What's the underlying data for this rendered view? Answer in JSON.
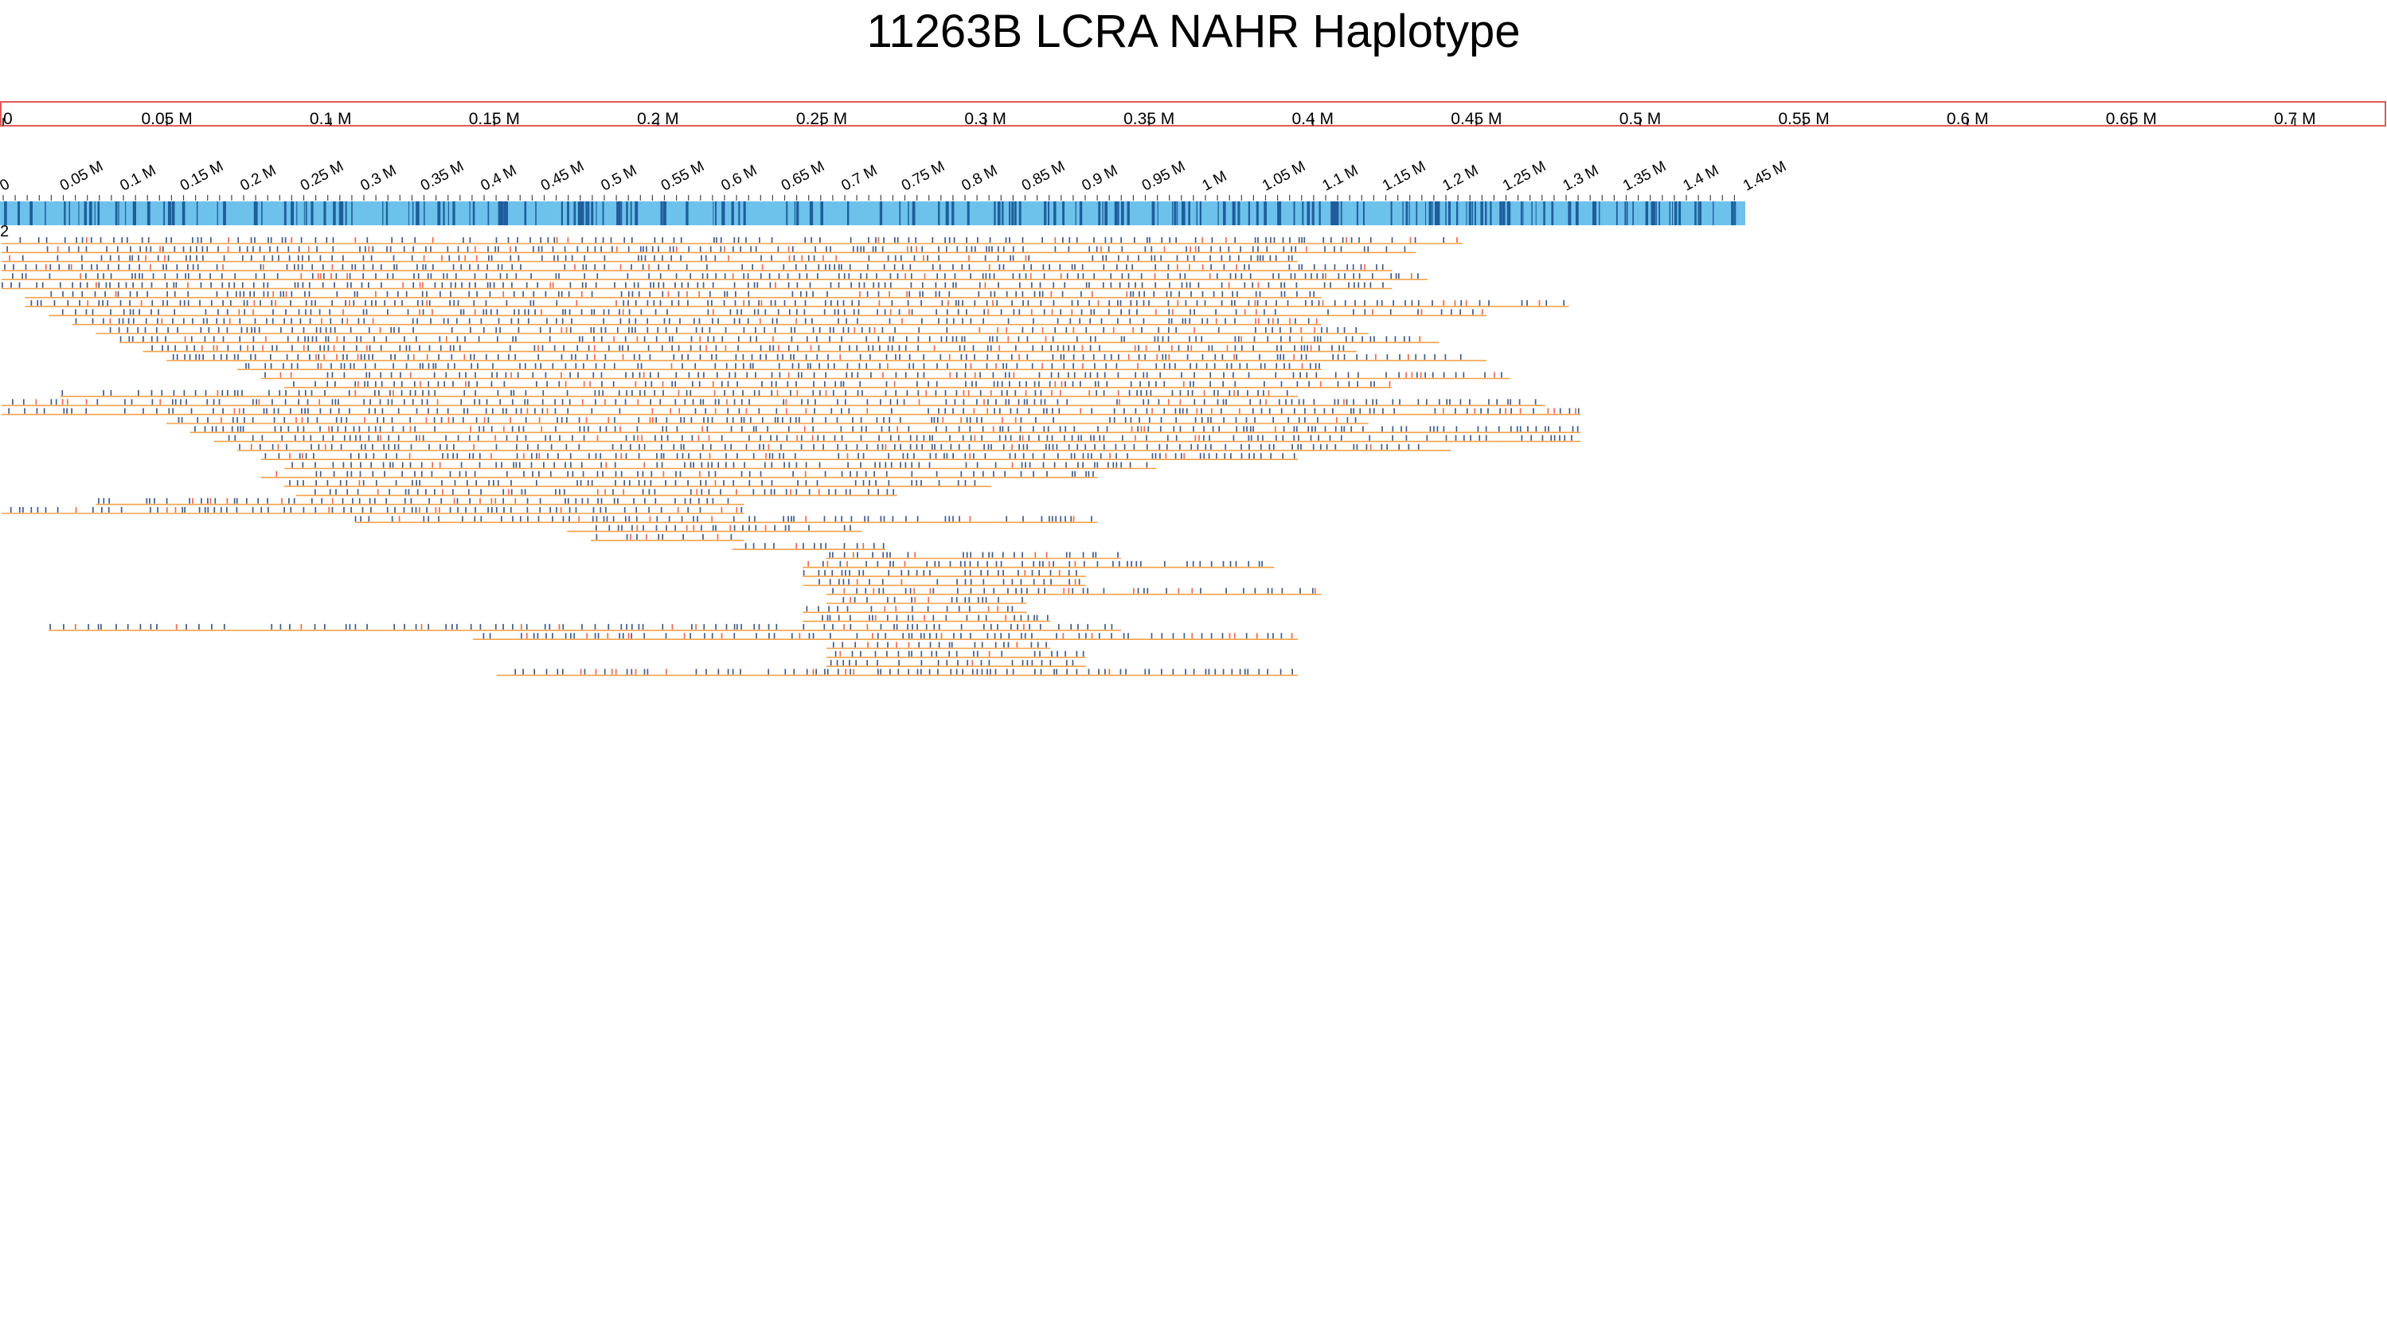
{
  "title": "11263B LCRA NAHR Haplotype",
  "colors": {
    "scale_border": "#e05a5a",
    "reference_bar": "#6cc2ea",
    "reference_feature": "#1f5d9c",
    "read_line": "#f2a24a",
    "match_tick": "#3e5c8e",
    "mismatch_tick": "#ee6a4c"
  },
  "top_axis": {
    "ticks": [
      "0",
      "0.05 M",
      "0.1 M",
      "0.15 M",
      "0.2 M",
      "0.25 M",
      "0.3 M",
      "0.35 M",
      "0.4 M",
      "0.45 M",
      "0.5 M",
      "0.55 M",
      "0.6 M",
      "0.65 M",
      "0.7 M",
      "0.75 M",
      "0.8 M",
      "0.85 M",
      "0.9 M",
      "0.95 M",
      "1 M",
      "1.05 M",
      "1.1 M",
      "1.15 M",
      "1.2 M",
      "1.25 M",
      "1.3 M",
      "1.35 M",
      "1.4 M",
      "1.45 M"
    ]
  },
  "reference_axis": {
    "ticks": [
      "0",
      "0.05 M",
      "0.1 M",
      "0.15 M",
      "0.2 M",
      "0.25 M",
      "0.3 M",
      "0.35 M",
      "0.4 M",
      "0.45 M",
      "0.5 M",
      "0.55 M",
      "0.6 M",
      "0.65 M",
      "0.7 M",
      "0.75 M",
      "0.8 M",
      "0.85 M",
      "0.9 M",
      "0.95 M",
      "1 M",
      "1.05 M",
      "1.1 M",
      "1.15 M",
      "1.2 M",
      "1.25 M",
      "1.3 M",
      "1.35 M",
      "1.4 M",
      "1.45 M"
    ]
  },
  "track_label": "2",
  "reads": [
    [
      0.0,
      0.73,
      0.85,
      0.98,
      1.24
    ],
    [
      0.0,
      0.72,
      0.86,
      0.99,
      1.2
    ],
    [
      0.0,
      0.74,
      0.84,
      0.97,
      1.1
    ],
    [
      0.0,
      0.7,
      0.86,
      1.0,
      1.18
    ],
    [
      0.0,
      0.73,
      0.85,
      0.96,
      1.21
    ],
    [
      0.0,
      0.75,
      0.86,
      0.99,
      1.18
    ],
    [
      0.02,
      0.72,
      0.86,
      0.98,
      1.12
    ],
    [
      0.02,
      0.73,
      0.84,
      1.0,
      1.33
    ],
    [
      0.04,
      0.71,
      0.86,
      0.99,
      1.26
    ],
    [
      0.06,
      0.69,
      0.84,
      0.98,
      1.12
    ],
    [
      0.08,
      0.73,
      0.86,
      0.96,
      1.16
    ],
    [
      0.1,
      0.73,
      0.84,
      0.97,
      1.22
    ],
    [
      0.12,
      0.74,
      0.86,
      0.98,
      1.15
    ],
    [
      0.14,
      0.74,
      0.84,
      0.99,
      1.26
    ],
    [
      0.2,
      0.72,
      0.85,
      0.97,
      1.12
    ],
    [
      0.22,
      0.73,
      0.86,
      0.98,
      1.28
    ],
    [
      0.24,
      0.74,
      0.84,
      0.98,
      1.18
    ],
    [
      0.05,
      0.72,
      0.86,
      0.99,
      1.1
    ],
    [
      0.0,
      0.74,
      0.84,
      0.98,
      1.31
    ],
    [
      0.0,
      0.7,
      0.86,
      0.99,
      1.34
    ],
    [
      0.14,
      0.73,
      0.86,
      0.98,
      1.16
    ],
    [
      0.16,
      0.74,
      0.84,
      0.99,
      1.34
    ],
    [
      0.18,
      0.73,
      0.85,
      0.97,
      1.34
    ],
    [
      0.2,
      0.74,
      0.86,
      0.98,
      1.23
    ],
    [
      0.22,
      0.73,
      0.84,
      0.99,
      1.1
    ],
    [
      0.24,
      0.74,
      0.86,
      0.97,
      0.98
    ],
    [
      0.22,
      0.74,
      0.86,
      0.98,
      0.93
    ],
    [
      0.24,
      0.73,
      0.84,
      0.99,
      0.84
    ],
    [
      0.25,
      0.75,
      0.85,
      0.98,
      0.76
    ],
    [
      0.08,
      0.73,
      0.86,
      0.99,
      0.63
    ],
    [
      0.0,
      0.74,
      0.84,
      0.97,
      0.63
    ],
    [
      0.3,
      0.73,
      0.86,
      0.99,
      0.93
    ],
    [
      0.48,
      0.74,
      0.84,
      0.98,
      0.73
    ],
    [
      0.5,
      0.73,
      0.86,
      0.99,
      0.63
    ],
    [
      0.62,
      0.75,
      0.84,
      0.98,
      0.75
    ],
    [
      0.7,
      0.73,
      0.85,
      0.99,
      0.95
    ],
    [
      0.68,
      0.74,
      0.86,
      0.97,
      1.08
    ],
    [
      0.68,
      0.73,
      0.84,
      0.99,
      0.92
    ],
    [
      0.68,
      0.74,
      0.86,
      0.98,
      0.92
    ],
    [
      0.7,
      0.73,
      0.84,
      0.99,
      1.12
    ],
    [
      0.7,
      0.74,
      0.86,
      0.98,
      0.87
    ],
    [
      0.68,
      0.73,
      0.84,
      0.99,
      0.87
    ],
    [
      0.68,
      0.74,
      0.86,
      0.98,
      0.89
    ],
    [
      0.04,
      0.73,
      0.84,
      0.99,
      0.95
    ],
    [
      0.4,
      0.74,
      0.86,
      0.97,
      1.1
    ],
    [
      0.7,
      0.73,
      0.84,
      0.99,
      0.89
    ],
    [
      0.7,
      0.74,
      0.86,
      0.98,
      0.92
    ],
    [
      0.7,
      0.73,
      0.84,
      0.99,
      0.92
    ],
    [
      0.42,
      0.74,
      0.86,
      0.98,
      1.1
    ]
  ]
}
